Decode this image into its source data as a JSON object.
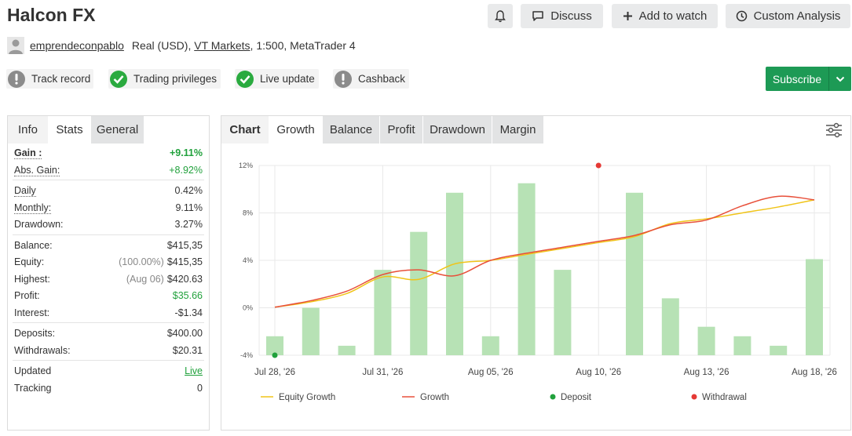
{
  "header": {
    "title": "Halcon FX",
    "discuss_label": "Discuss",
    "watch_label": "Add to watch",
    "analysis_label": "Custom Analysis"
  },
  "account": {
    "username": "emprendeconpablo",
    "type": "Real (USD), ",
    "broker": "VT Markets",
    "details": ", 1:500, MetaTrader 4"
  },
  "badges": [
    {
      "label": "Track record",
      "status": "warn"
    },
    {
      "label": "Trading privileges",
      "status": "ok"
    },
    {
      "label": "Live update",
      "status": "ok"
    },
    {
      "label": "Cashback",
      "status": "warn"
    }
  ],
  "subscribe": {
    "label": "Subscribe",
    "color": "#1d9a55"
  },
  "left_tabs": [
    "Info",
    "Stats",
    "General"
  ],
  "stats": {
    "gain": {
      "label": "Gain :",
      "value": "+9.11%"
    },
    "abs_gain": {
      "label": "Abs. Gain:",
      "value": "+8.92%"
    },
    "daily": {
      "label": "Daily",
      "value": "0.42%"
    },
    "monthly": {
      "label": "Monthly:",
      "value": "9.11%"
    },
    "drawdown": {
      "label": "Drawdown:",
      "value": "3.27%"
    },
    "balance": {
      "label": "Balance:",
      "value": "$415,35"
    },
    "equity": {
      "label": "Equity:",
      "note": "(100.00%)",
      "value": "$415,35"
    },
    "highest": {
      "label": "Highest:",
      "note": "(Aug 06)",
      "value": "$420.63"
    },
    "profit": {
      "label": "Profit:",
      "value": "$35.66"
    },
    "interest": {
      "label": "Interest:",
      "value": "-$1.34"
    },
    "deposits": {
      "label": "Deposits:",
      "value": "$400.00"
    },
    "withdrawals": {
      "label": "Withdrawals:",
      "value": "$20.31"
    },
    "updated": {
      "label": "Updated",
      "value": "Live"
    },
    "tracking": {
      "label": "Tracking",
      "value": "0"
    }
  },
  "chart_tabs": [
    "Chart",
    "Growth",
    "Balance",
    "Profit",
    "Drawdown",
    "Margin"
  ],
  "chart_data": {
    "type": "bar",
    "x_tick_labels": [
      "Jul 28, '26",
      "Jul 31, '26",
      "Aug 05, '26",
      "Aug 10, '26",
      "Aug 13, '26",
      "Aug 18, '26"
    ],
    "y_tick_labels": [
      "12%",
      "8%",
      "4%",
      "0%",
      "-4%"
    ],
    "ylim": [
      -4,
      12
    ],
    "grid": true,
    "legend_position": "bottom",
    "colors": {
      "bars": "#b7e2b5",
      "equity_growth": "#f0c419",
      "growth": "#e8503a",
      "deposit": "#21a13c",
      "withdrawal": "#e53935"
    },
    "bars": [
      {
        "x": 0.0,
        "value": -2.4
      },
      {
        "x": 1.0,
        "value": 0.0
      },
      {
        "x": 2.0,
        "value": -3.2
      },
      {
        "x": 3.0,
        "value": 3.2
      },
      {
        "x": 4.0,
        "value": 6.4
      },
      {
        "x": 5.0,
        "value": 9.7
      },
      {
        "x": 6.0,
        "value": -2.4
      },
      {
        "x": 7.0,
        "value": 10.5
      },
      {
        "x": 8.0,
        "value": 3.2
      },
      {
        "x": 10.0,
        "value": 9.7
      },
      {
        "x": 11.0,
        "value": 0.8
      },
      {
        "x": 12.0,
        "value": -1.6
      },
      {
        "x": 13.0,
        "value": -2.4
      },
      {
        "x": 14.0,
        "value": -3.2
      },
      {
        "x": 15.0,
        "value": 4.1
      }
    ],
    "series": [
      {
        "name": "Equity Growth",
        "points": [
          [
            0.0,
            0.05
          ],
          [
            1.0,
            0.5
          ],
          [
            2.0,
            1.2
          ],
          [
            3.0,
            2.6
          ],
          [
            4.0,
            2.4
          ],
          [
            5.0,
            3.7
          ],
          [
            6.0,
            4.0
          ],
          [
            7.0,
            4.5
          ],
          [
            8.0,
            5.0
          ],
          [
            9.0,
            5.5
          ],
          [
            10.0,
            6.0
          ],
          [
            11.0,
            7.1
          ],
          [
            12.0,
            7.5
          ],
          [
            13.0,
            8.0
          ],
          [
            14.0,
            8.5
          ],
          [
            15.0,
            9.1
          ]
        ]
      },
      {
        "name": "Growth",
        "points": [
          [
            0.0,
            0.05
          ],
          [
            1.0,
            0.6
          ],
          [
            2.0,
            1.4
          ],
          [
            3.0,
            2.8
          ],
          [
            4.0,
            3.2
          ],
          [
            5.0,
            2.7
          ],
          [
            6.0,
            4.0
          ],
          [
            7.0,
            4.6
          ],
          [
            8.0,
            5.1
          ],
          [
            9.0,
            5.6
          ],
          [
            10.0,
            6.1
          ],
          [
            11.0,
            7.0
          ],
          [
            12.0,
            7.4
          ],
          [
            13.0,
            8.6
          ],
          [
            14.0,
            9.4
          ],
          [
            15.0,
            9.1
          ]
        ]
      }
    ],
    "markers": [
      {
        "name": "Deposit",
        "x": 0.0,
        "y": -4
      },
      {
        "name": "Withdrawal",
        "x": 9.0,
        "y": 12
      }
    ],
    "legend": [
      "Equity Growth",
      "Growth",
      "Deposit",
      "Withdrawal"
    ]
  }
}
